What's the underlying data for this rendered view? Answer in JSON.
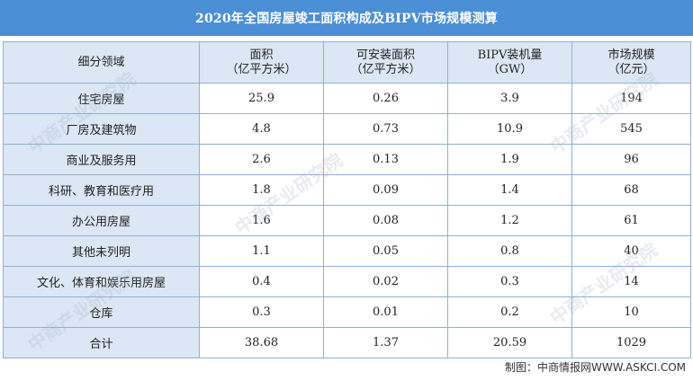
{
  "title": "2020年全国房屋竣工面积构成及BIPV市场规模测算",
  "table": {
    "headers": [
      {
        "line1": "细分领域",
        "line2": ""
      },
      {
        "line1": "面积",
        "line2": "（亿平方米）"
      },
      {
        "line1": "可安装面积",
        "line2": "（亿平方米）"
      },
      {
        "line1": "BIPV装机量",
        "line2": "（GW）"
      },
      {
        "line1": "市场规模",
        "line2": "（亿元）"
      }
    ],
    "rows": [
      [
        "住宅房屋",
        "25.9",
        "0.26",
        "3.9",
        "194"
      ],
      [
        "厂房及建筑物",
        "4.8",
        "0.73",
        "10.9",
        "545"
      ],
      [
        "商业及服务用",
        "2.6",
        "0.13",
        "1.9",
        "96"
      ],
      [
        "科研、教育和医疗用",
        "1.8",
        "0.09",
        "1.4",
        "68"
      ],
      [
        "办公用房屋",
        "1.6",
        "0.08",
        "1.2",
        "61"
      ],
      [
        "其他未列明",
        "1.1",
        "0.05",
        "0.8",
        "40"
      ],
      [
        "文化、体育和娱乐用房屋",
        "0.4",
        "0.02",
        "0.3",
        "14"
      ],
      [
        "仓库",
        "0.3",
        "0.01",
        "0.2",
        "10"
      ],
      [
        "合计",
        "38.68",
        "1.37",
        "20.59",
        "1029"
      ]
    ]
  },
  "footer": "制图：中商情报网WWW.ASKCI.COM",
  "watermark_text": "中商产业研究院"
}
